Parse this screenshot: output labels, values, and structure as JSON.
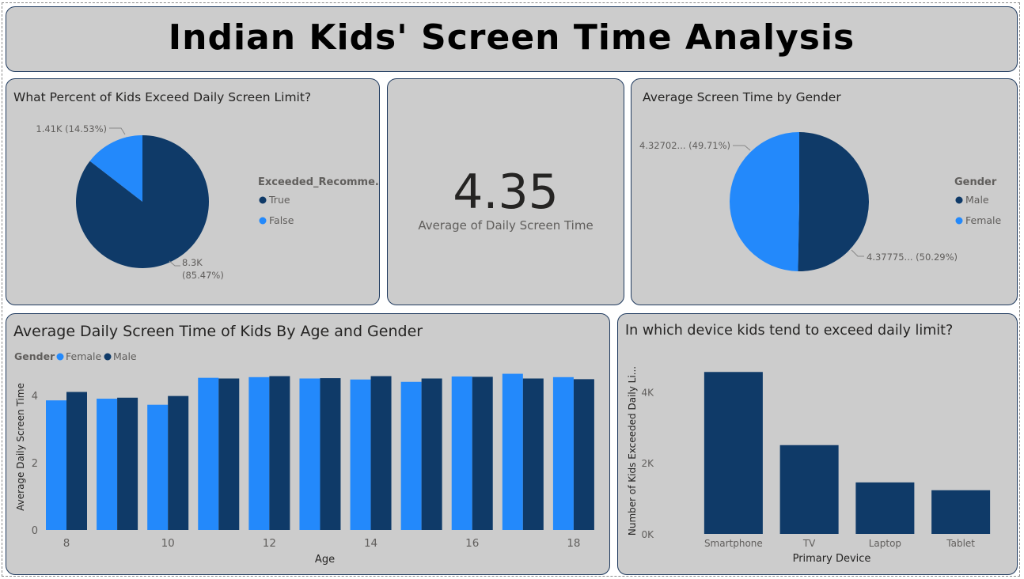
{
  "dashboard_title": "Indian Kids' Screen Time Analysis",
  "colors": {
    "dark_blue": "#0f3a68",
    "light_blue": "#2389fb",
    "card_bg": "#cccccc"
  },
  "kpi": {
    "value": "4.35",
    "label": "Average of Daily Screen Time"
  },
  "chart_data": [
    {
      "type": "pie",
      "title": "What Percent of Kids Exceed Daily Screen Limit?",
      "legend_title": "Exceeded_Recomme...",
      "legend_position": "right",
      "slices": [
        {
          "name": "True",
          "value": 8300,
          "label": "8.3K",
          "pct_label": "(85.47%)",
          "color": "#0f3a68"
        },
        {
          "name": "False",
          "value": 1410,
          "label": "1.41K (14.53%)",
          "color": "#2389fb"
        }
      ]
    },
    {
      "type": "pie",
      "title": "Average Screen Time by Gender",
      "legend_title": "Gender",
      "legend_position": "right",
      "slices": [
        {
          "name": "Male",
          "value": 4.37775,
          "label": "4.37775... (50.29%)",
          "color": "#0f3a68"
        },
        {
          "name": "Female",
          "value": 4.32702,
          "label": "4.32702... (49.71%)",
          "color": "#2389fb"
        }
      ]
    },
    {
      "type": "bar",
      "title": "Average Daily Screen Time of Kids By Age and Gender",
      "legend_title": "Gender",
      "legend_position": "top-left",
      "xlabel": "Age",
      "ylabel": "Average Daily Screen Time",
      "ylim": [
        0,
        4.7
      ],
      "yticks": [
        "0",
        "2",
        "4"
      ],
      "ytick_values": [
        0,
        2,
        4
      ],
      "categories": [
        8,
        9,
        10,
        11,
        12,
        13,
        14,
        15,
        16,
        17,
        18
      ],
      "xtick_labels": [
        "8",
        "",
        "10",
        "",
        "12",
        "",
        "14",
        "",
        "16",
        "",
        "18"
      ],
      "series": [
        {
          "name": "Female",
          "color": "#2389fb",
          "values": [
            3.85,
            3.9,
            3.72,
            4.52,
            4.54,
            4.5,
            4.47,
            4.4,
            4.56,
            4.64,
            4.54
          ]
        },
        {
          "name": "Male",
          "color": "#0f3a68",
          "values": [
            4.1,
            3.93,
            3.98,
            4.5,
            4.57,
            4.51,
            4.57,
            4.5,
            4.55,
            4.5,
            4.48
          ]
        }
      ],
      "grid": false
    },
    {
      "type": "bar",
      "title": "In which device kids tend to exceed daily limit?",
      "xlabel": "Primary Device",
      "ylabel": "Number of Kids Exceeded Daily Li...",
      "ylim": [
        0,
        4900
      ],
      "yticks": [
        "0K",
        "2K",
        "4K"
      ],
      "ytick_values": [
        0,
        2000,
        4000
      ],
      "categories": [
        "Smartphone",
        "TV",
        "Laptop",
        "Tablet"
      ],
      "values": [
        4560,
        2500,
        1450,
        1230
      ],
      "color": "#0f3a68",
      "grid": false
    }
  ]
}
